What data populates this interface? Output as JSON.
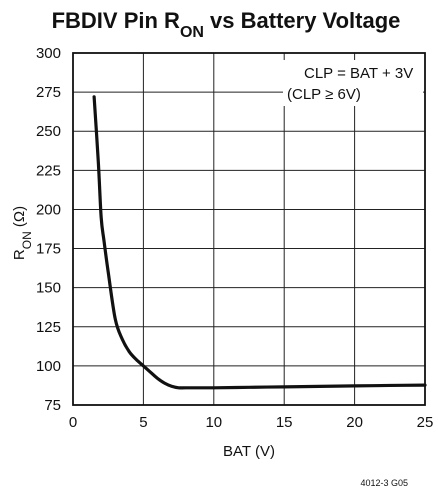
{
  "chart_data": {
    "type": "line",
    "title_main": "FBDIV Pin R",
    "title_sub": "ON",
    "title_rest": " vs Battery Voltage",
    "xlabel": "BAT (V)",
    "ylabel_main": "R",
    "ylabel_sub": "ON",
    "ylabel_rest": " (Ω)",
    "xlim": [
      0,
      25
    ],
    "ylim": [
      75,
      300
    ],
    "x_ticks": [
      0,
      5,
      10,
      15,
      20,
      25
    ],
    "y_ticks": [
      75,
      100,
      125,
      150,
      175,
      200,
      225,
      250,
      275,
      300
    ],
    "grid": true,
    "annotations": [
      "CLP = BAT + 3V",
      "(CLP ≥ 6V)"
    ],
    "series": [
      {
        "x": [
          1.5,
          1.8,
          2.0,
          2.2,
          2.5,
          3.0,
          3.5,
          4.0,
          4.5,
          5.0,
          5.5,
          6.0,
          6.5,
          7.0,
          7.5,
          8.0,
          9.0,
          10.0,
          12.5,
          15.0,
          17.5,
          20.0,
          22.5,
          25.0
        ],
        "y": [
          272,
          230,
          195,
          180,
          160,
          130,
          117,
          109,
          104,
          100,
          96,
          92,
          89,
          87,
          86,
          86,
          86,
          86,
          86.3,
          86.6,
          86.9,
          87.2,
          87.5,
          87.7
        ]
      }
    ],
    "figure_id": "4012-3 G05"
  }
}
